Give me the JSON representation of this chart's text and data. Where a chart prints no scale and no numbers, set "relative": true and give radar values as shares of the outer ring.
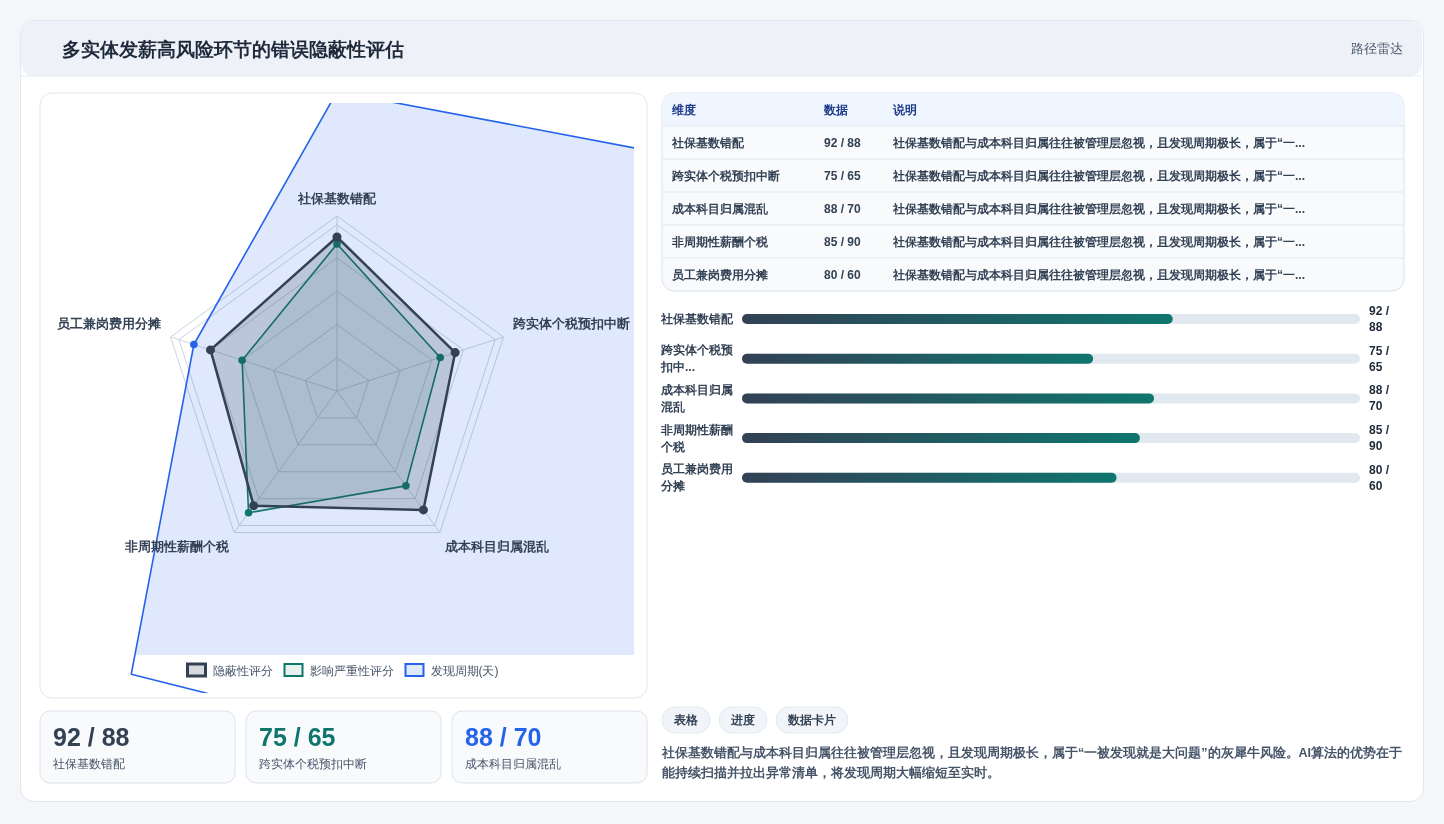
{
  "chart_data": [
    {
      "type": "other",
      "title": "多实体发薪高风险环节的错误隐蔽性评估",
      "subtitle": "路径雷达"
    },
    {
      "type": "radar",
      "relative": true,
      "categories": [
        "社保基数错配",
        "跨实体个税预扣中断",
        "成本科目归属混乱",
        "非周期性薪酬个税",
        "员工兼岗费用分摊"
      ],
      "series": [
        {
          "name": "隐蔽性评分",
          "color": "#334155",
          "values": [
            0.88,
            0.71,
            0.84,
            0.81,
            0.76
          ]
        },
        {
          "name": "影响严重性评分",
          "color": "#0f766e",
          "values": [
            0.84,
            0.62,
            0.67,
            0.86,
            0.57
          ]
        },
        {
          "name": "发现周期(天)",
          "color": "#2563eb",
          "values": [
            1.71,
            3.5,
            2.9,
            2.0,
            0.86
          ]
        }
      ],
      "legend": "bottom",
      "marker": "circle"
    },
    {
      "type": "other",
      "annotations": [
        "维度",
        "数据",
        "说明",
        "社保基数错配",
        "92 / 88",
        "社保基数错配与成本科目归属往往被管理层忽视，且发现周期极长，属于“一...",
        "跨实体个税预扣中断",
        "75 / 65",
        "社保基数错配与成本科目归属往往被管理层忽视，且发现周期极长，属于“一...",
        "成本科目归属混乱",
        "88 / 70",
        "社保基数错配与成本科目归属往往被管理层忽视，且发现周期极长，属于“一...",
        "非周期性薪酬个税",
        "85 / 90",
        "社保基数错配与成本科目归属往往被管理层忽视，且发现周期极长，属于“一...",
        "员工兼岗费用分摊",
        "80 / 60",
        "社保基数错配与成本科目归属往往被管理层忽视，且发现周期极长，属于“一..."
      ]
    },
    {
      "type": "bar",
      "orientation": "horizontal",
      "categories": [
        "社保基数错配",
        "跨实体个税预扣中...",
        "成本科目归属混乱",
        "非周期性薪酬个税",
        "员工兼岗费用分摊"
      ],
      "values": [
        92,
        75,
        88,
        85,
        80
      ],
      "value_labels": [
        "92 / 88",
        "75 / 65",
        "88 / 70",
        "85 / 90",
        "80 / 60"
      ],
      "color": "#0f766e",
      "xlim": [
        0,
        132
      ]
    },
    {
      "type": "other",
      "annotations": [
        "92 / 88",
        "社保基数错配",
        "75 / 65",
        "跨实体个税预扣中断",
        "88 / 70",
        "成本科目归属混乱"
      ]
    },
    {
      "type": "other",
      "annotations": [
        "表格",
        "进度",
        "数据卡片",
        "社保基数错配与成本科目归属往往被管理层忽视，且发现周期极长，属于“一被发现就是大问题”的灰犀牛风险。AI算法的优势在于能持续扫描并拉出异常清单，将发现周期大幅缩短至实时。"
      ]
    }
  ]
}
